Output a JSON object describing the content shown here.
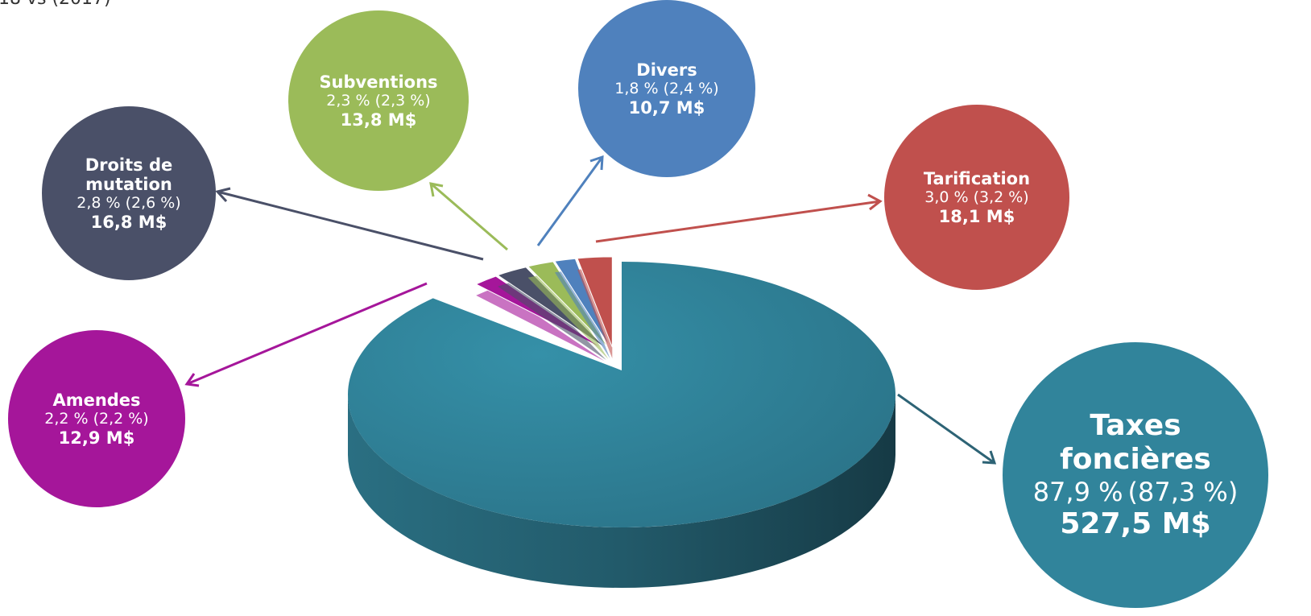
{
  "chart_data": {
    "type": "pie",
    "subtitle": "18 vs (2017)",
    "categories": [
      "Taxes foncières",
      "Amendes",
      "Droits de mutation",
      "Subventions",
      "Divers",
      "Tarification"
    ],
    "values": [
      87.9,
      2.2,
      2.8,
      2.3,
      1.8,
      3.0
    ],
    "value_labels": [
      "87,9 %",
      "2,2 %",
      "2,8 %",
      "2,3 %",
      "1,8 %",
      "3,0 %"
    ],
    "previous_values": [
      87.3,
      2.2,
      2.6,
      2.3,
      2.4,
      3.2
    ],
    "previous_value_labels": [
      "(87,3 %)",
      "(2,2 %)",
      "(2,6 %)",
      "(2,3 %)",
      "(2,4 %)",
      "(3,2 %)"
    ],
    "amounts": [
      527.5,
      12.9,
      16.8,
      13.8,
      10.7,
      18.1
    ],
    "amount_labels": [
      "527,5 M$",
      "12,9 M$",
      "16,8 M$",
      "13,8 M$",
      "10,7 M$",
      "18,1 M$"
    ],
    "colors": [
      "#31849b",
      "#a5169a",
      "#4a5068",
      "#9bbb59",
      "#4f81bd",
      "#c0504d"
    ]
  }
}
